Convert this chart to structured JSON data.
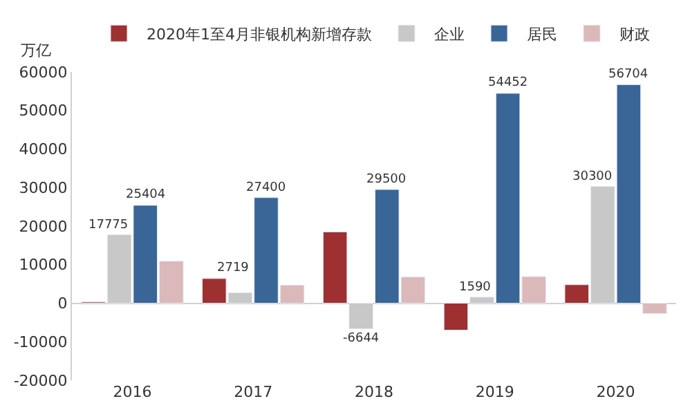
{
  "chart_data": {
    "type": "bar",
    "ylabel": "万亿",
    "categories": [
      "2016",
      "2017",
      "2018",
      "2019",
      "2020"
    ],
    "series": [
      {
        "name": "2020年1至4月非银机构新增存款",
        "color": "#9e3032",
        "values": [
          300,
          6400,
          18500,
          -7000,
          4800
        ]
      },
      {
        "name": "企业",
        "color": "#c8c8c8",
        "values": [
          17775,
          2719,
          -6644,
          1590,
          30300
        ],
        "value_labels": [
          "17775",
          "2719",
          "-6644",
          "1590",
          "30300"
        ]
      },
      {
        "name": "居民",
        "color": "#3a6597",
        "values": [
          25404,
          27400,
          29500,
          54452,
          56704
        ],
        "value_labels": [
          "25404",
          "27400",
          "29500",
          "54452",
          "56704"
        ]
      },
      {
        "name": "财政",
        "color": "#dbb8b9",
        "values": [
          10900,
          4700,
          6800,
          6900,
          -2700
        ]
      }
    ],
    "ylim": [
      -20000,
      60000
    ],
    "yticks": [
      -20000,
      -10000,
      0,
      10000,
      20000,
      30000,
      40000,
      50000,
      60000
    ],
    "legend": "top"
  }
}
